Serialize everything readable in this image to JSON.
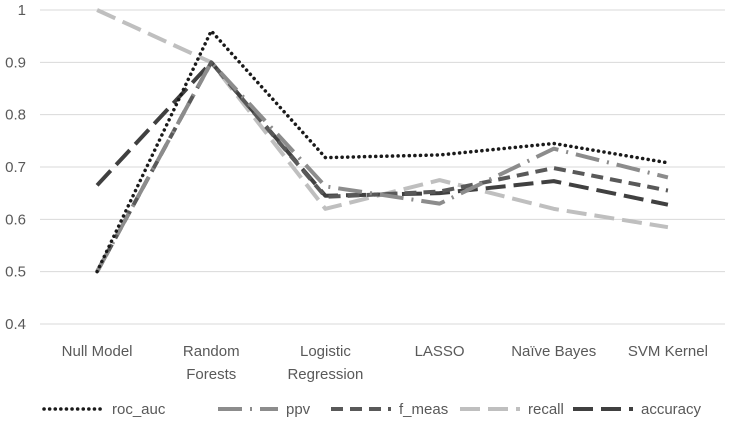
{
  "chart_data": {
    "type": "line",
    "title": "",
    "xlabel": "",
    "ylabel": "",
    "ylim": [
      0.4,
      1
    ],
    "yticks": [
      "0.4",
      "0.5",
      "0.6",
      "0.7",
      "0.8",
      "0.9",
      "1"
    ],
    "grid": true,
    "legend_position": "bottom",
    "categories": [
      "Null Model",
      "Random Forests",
      "Logistic Regression",
      "LASSO",
      "Naïve Bayes",
      "SVM Kernel"
    ],
    "category_label_lines": [
      [
        "Null Model"
      ],
      [
        "Random",
        "Forests"
      ],
      [
        "Logistic",
        "Regression"
      ],
      [
        "LASSO"
      ],
      [
        "Naïve Bayes"
      ],
      [
        "SVM Kernel"
      ]
    ],
    "series": [
      {
        "name": "roc_auc",
        "values": [
          0.5,
          0.96,
          0.718,
          0.723,
          0.745,
          0.708
        ],
        "color": "#1a1a1a",
        "dash": "dotted"
      },
      {
        "name": "ppv",
        "values": [
          0.5,
          0.9,
          0.663,
          0.63,
          0.735,
          0.68
        ],
        "color": "#8c8c8c",
        "dash": "dash-dot"
      },
      {
        "name": "f_meas",
        "values": [
          0.5,
          0.9,
          0.643,
          0.653,
          0.698,
          0.655
        ],
        "color": "#595959",
        "dash": "dashed"
      },
      {
        "name": "recall",
        "values": [
          1.0,
          0.9,
          0.62,
          0.675,
          0.62,
          0.585
        ],
        "color": "#bfbfbf",
        "dash": "long-dash"
      },
      {
        "name": "accuracy",
        "values": [
          0.665,
          0.9,
          0.645,
          0.65,
          0.673,
          0.628
        ],
        "color": "#404040",
        "dash": "long-dash"
      }
    ]
  }
}
